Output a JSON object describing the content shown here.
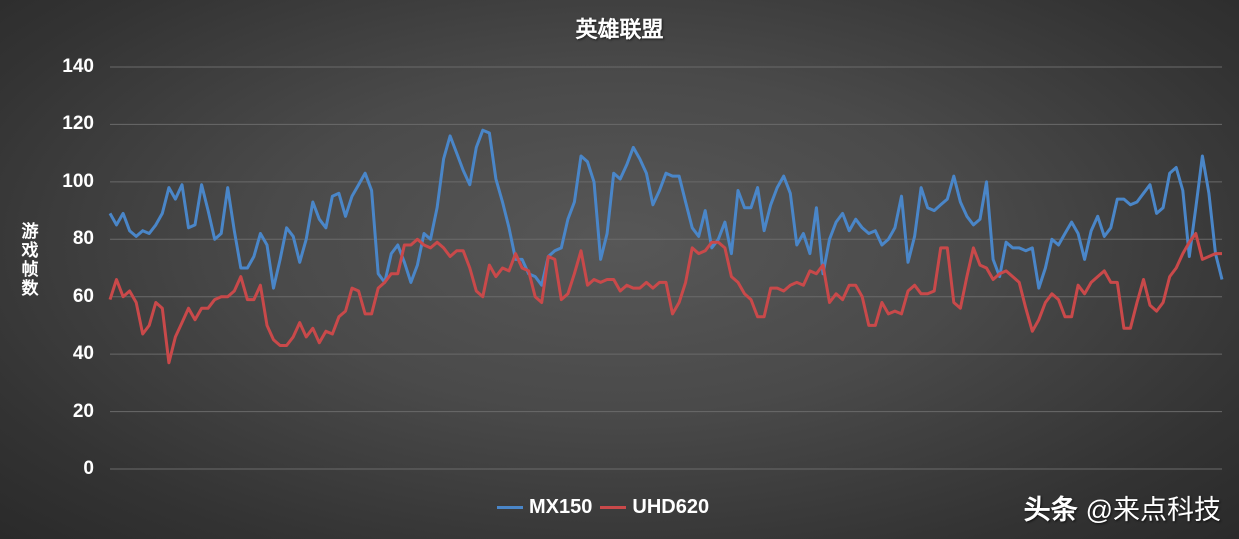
{
  "chart_data": {
    "type": "line",
    "title": "英雄联盟",
    "xlabel": "",
    "ylabel": "游戏帧数",
    "ylim": [
      0,
      140
    ],
    "yticks": [
      0,
      20,
      40,
      60,
      80,
      100,
      120,
      140
    ],
    "grid": true,
    "legend_position": "bottom",
    "series": [
      {
        "name": "MX150",
        "color": "#4a86c8",
        "values": [
          89,
          85,
          89,
          83,
          81,
          83,
          82,
          85,
          89,
          98,
          94,
          99,
          84,
          85,
          99,
          90,
          80,
          82,
          98,
          83,
          70,
          70,
          74,
          82,
          78,
          63,
          73,
          84,
          81,
          72,
          80,
          93,
          87,
          84,
          95,
          96,
          88,
          95,
          99,
          103,
          97,
          68,
          65,
          75,
          78,
          72,
          65,
          71,
          82,
          80,
          91,
          108,
          116,
          110,
          104,
          99,
          112,
          118,
          117,
          101,
          93,
          84,
          73,
          73,
          68,
          67,
          64,
          74,
          76,
          77,
          87,
          93,
          109,
          107,
          100,
          73,
          82,
          103,
          101,
          106,
          112,
          108,
          103,
          92,
          97,
          103,
          102,
          102,
          93,
          84,
          81,
          90,
          77,
          80,
          86,
          75,
          97,
          91,
          91,
          98,
          83,
          92,
          98,
          102,
          96,
          78,
          82,
          75,
          91,
          68,
          80,
          86,
          89,
          83,
          87,
          84,
          82,
          83,
          78,
          80,
          84,
          95,
          72,
          81,
          98,
          91,
          90,
          92,
          94,
          102,
          93,
          88,
          85,
          87,
          100,
          73,
          67,
          79,
          77,
          77,
          76,
          77,
          63,
          70,
          80,
          78,
          82,
          86,
          82,
          73,
          83,
          88,
          81,
          84,
          94,
          94,
          92,
          93,
          96,
          99,
          89,
          91,
          103,
          105,
          97,
          74,
          91,
          109,
          96,
          75,
          66
        ]
      },
      {
        "name": "UHD620",
        "color": "#c9494a",
        "values": [
          59,
          66,
          60,
          62,
          58,
          47,
          50,
          58,
          56,
          37,
          46,
          51,
          56,
          52,
          56,
          56,
          59,
          60,
          60,
          62,
          67,
          59,
          59,
          64,
          50,
          45,
          43,
          43,
          46,
          51,
          46,
          49,
          44,
          48,
          47,
          53,
          55,
          63,
          62,
          54,
          54,
          63,
          65,
          68,
          68,
          78,
          78,
          80,
          78,
          77,
          79,
          77,
          74,
          76,
          76,
          70,
          62,
          60,
          71,
          67,
          70,
          69,
          75,
          70,
          69,
          60,
          58,
          74,
          73,
          59,
          61,
          68,
          76,
          64,
          66,
          65,
          66,
          66,
          62,
          64,
          63,
          63,
          65,
          63,
          65,
          65,
          54,
          58,
          65,
          77,
          75,
          76,
          79,
          79,
          77,
          67,
          65,
          61,
          59,
          53,
          53,
          63,
          63,
          62,
          64,
          65,
          64,
          69,
          68,
          71,
          58,
          61,
          59,
          64,
          64,
          60,
          50,
          50,
          58,
          54,
          55,
          54,
          62,
          64,
          61,
          61,
          62,
          77,
          77,
          58,
          56,
          67,
          77,
          71,
          70,
          66,
          68,
          69,
          67,
          65,
          56,
          48,
          52,
          58,
          61,
          59,
          53,
          53,
          64,
          61,
          65,
          67,
          69,
          65,
          65,
          49,
          49,
          58,
          66,
          57,
          55,
          58,
          67,
          70,
          75,
          79,
          82,
          73,
          74,
          75,
          75
        ]
      }
    ]
  },
  "legend": {
    "items": [
      {
        "label": "MX150",
        "color": "#4a86c8"
      },
      {
        "label": "UHD620",
        "color": "#c9494a"
      }
    ]
  },
  "watermark": {
    "brand": "头条",
    "handle": "@来点科技"
  },
  "colors": {
    "gridline": "#6a6a6a",
    "text": "#ffffff"
  }
}
